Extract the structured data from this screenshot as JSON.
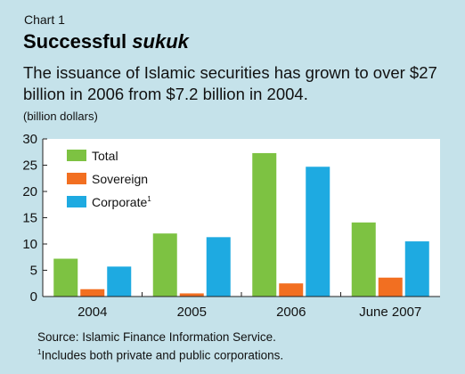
{
  "header": {
    "chart_label": "Chart 1",
    "title_plain": "Successful ",
    "title_italic": "sukuk",
    "subtitle": "The issuance of Islamic securities has grown to over $27 billion in 2006 from $7.2 billion in 2004.",
    "unit": "(billion dollars)"
  },
  "notes": {
    "source": "Source: Islamic Finance Information Service.",
    "footnote_mark": "1",
    "footnote": "Includes both private and public corporations."
  },
  "chart_data": {
    "type": "bar",
    "categories": [
      "2004",
      "2005",
      "2006",
      "June 2007"
    ],
    "series": [
      {
        "name": "Total",
        "values": [
          7.2,
          12.0,
          27.3,
          14.1
        ],
        "color": "#7dc242"
      },
      {
        "name": "Sovereign",
        "values": [
          1.4,
          0.6,
          2.5,
          3.6
        ],
        "color": "#f26f21"
      },
      {
        "name": "Corporate",
        "values": [
          5.7,
          11.3,
          24.7,
          10.5
        ],
        "color": "#1eaae1",
        "footnote": "1"
      }
    ],
    "ylim": [
      0,
      30
    ],
    "yticks": [
      0,
      5,
      10,
      15,
      20,
      25,
      30
    ],
    "grid": false,
    "legend": "top-left",
    "plot_background": "#ffffff"
  }
}
